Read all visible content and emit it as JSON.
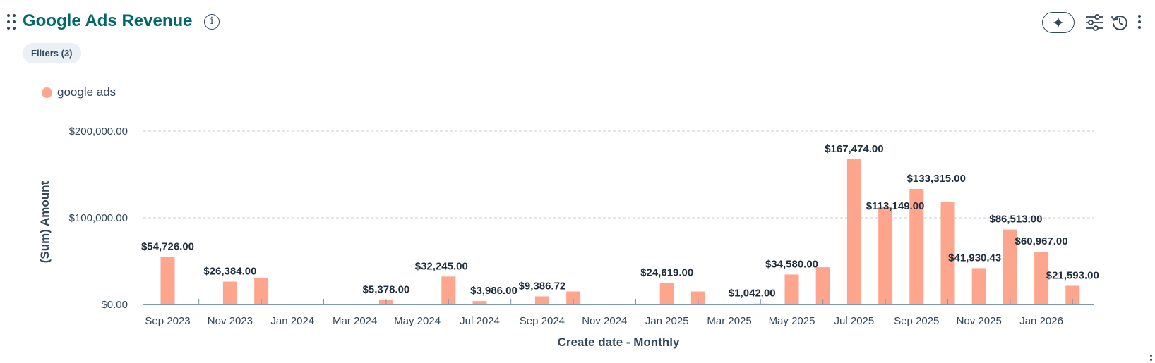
{
  "header": {
    "title": "Google Ads Revenue",
    "filters_label": "Filters (3)",
    "icons": {
      "drag": "drag-handle-icon",
      "info": "info-icon",
      "ai": "sparkle-icon",
      "settings": "sliders-icon",
      "history": "history-icon",
      "more": "more-vertical-icon"
    }
  },
  "colors": {
    "bar": "#fea58e",
    "title": "#00676b",
    "text": "#33475b",
    "grid": "#c8cdd2"
  },
  "chart_data": {
    "type": "bar",
    "xlabel": "Create date - Monthly",
    "ylabel": "(Sum) Amount",
    "ylim": [
      0,
      200000
    ],
    "y_ticks": [
      0,
      100000,
      200000
    ],
    "y_tick_labels": [
      "$0.00",
      "$100,000.00",
      "$200,000.00"
    ],
    "grid": true,
    "legend": "top-left",
    "categories": [
      "Sep 2023",
      "Oct 2023",
      "Nov 2023",
      "Dec 2023",
      "Jan 2024",
      "Feb 2024",
      "Mar 2024",
      "Apr 2024",
      "May 2024",
      "Jun 2024",
      "Jul 2024",
      "Aug 2024",
      "Sep 2024",
      "Oct 2024",
      "Nov 2024",
      "Dec 2024",
      "Jan 2025",
      "Feb 2025",
      "Mar 2025",
      "Apr 2025",
      "May 2025",
      "Jun 2025",
      "Jul 2025",
      "Aug 2025",
      "Sep 2025",
      "Oct 2025",
      "Nov 2025",
      "Dec 2025",
      "Jan 2026",
      "Feb 2026"
    ],
    "x_tick_labels": [
      "Sep 2023",
      "Nov 2023",
      "Jan 2024",
      "Mar 2024",
      "May 2024",
      "Jul 2024",
      "Sep 2024",
      "Nov 2024",
      "Jan 2025",
      "Mar 2025",
      "May 2025",
      "Jul 2025",
      "Sep 2025",
      "Nov 2025",
      "Jan 2026"
    ],
    "series": [
      {
        "name": "google ads",
        "values": [
          54726,
          0,
          26384,
          31000,
          0,
          0,
          0,
          5378,
          0,
          32245,
          3986,
          0,
          9386.72,
          15000,
          0,
          0,
          24619,
          15000,
          0,
          1042,
          34580,
          43000,
          167474,
          113149,
          133315,
          118000,
          41930.43,
          86513,
          60967,
          21593
        ]
      }
    ],
    "data_labels": [
      {
        "category": "Sep 2023",
        "text": "$54,726.00"
      },
      {
        "category": "Nov 2023",
        "text": "$26,384.00"
      },
      {
        "category": "Apr 2024",
        "text": "$5,378.00"
      },
      {
        "category": "Jun 2024",
        "text": "$32,245.00"
      },
      {
        "category": "Jul 2024",
        "text": "$3,986.00"
      },
      {
        "category": "Sep 2024",
        "text": "$9,386.72"
      },
      {
        "category": "Jan 2025",
        "text": "$24,619.00"
      },
      {
        "category": "Apr 2025",
        "text": "$1,042.00"
      },
      {
        "category": "May 2025",
        "text": "$34,580.00"
      },
      {
        "category": "Jul 2025",
        "text": "$167,474.00"
      },
      {
        "category": "Aug 2025",
        "text": "$113,149.00"
      },
      {
        "category": "Sep 2025",
        "text": "$133,315.00"
      },
      {
        "category": "Nov 2025",
        "text": "$41,930.43"
      },
      {
        "category": "Dec 2025",
        "text": "$86,513.00"
      },
      {
        "category": "Jan 2026",
        "text": "$60,967.00"
      },
      {
        "category": "Feb 2026",
        "text": "$21,593.00"
      }
    ]
  }
}
